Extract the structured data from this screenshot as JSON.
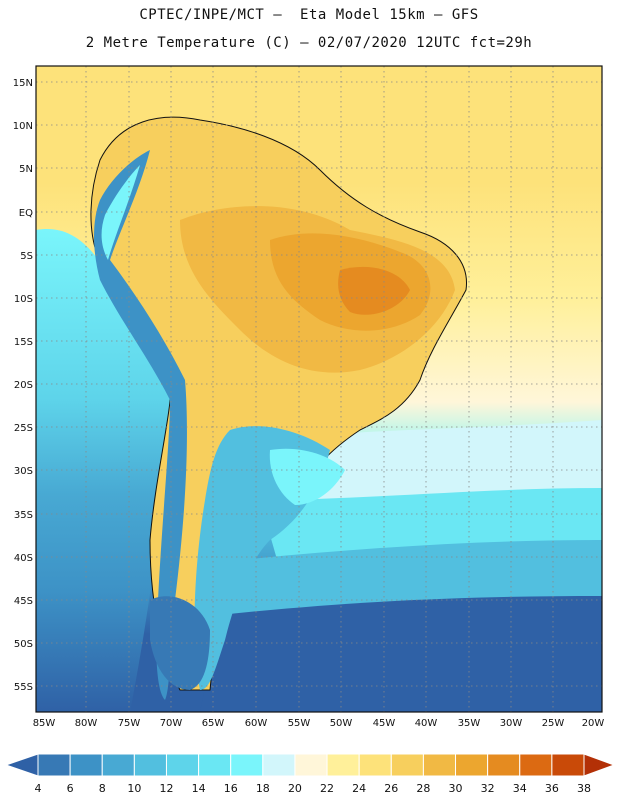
{
  "title": {
    "line1": "CPTEC/INPE/MCT –  Eta Model 15km – GFS",
    "line2": "2 Metre Temperature (C) – 02/07/2020 12UTC fct=29h"
  },
  "axes": {
    "lat_labels": [
      "15N",
      "10N",
      "5N",
      "EQ",
      "5S",
      "10S",
      "15S",
      "20S",
      "25S",
      "30S",
      "35S",
      "40S",
      "45S",
      "50S",
      "55S"
    ],
    "lon_labels": [
      "85W",
      "80W",
      "75W",
      "70W",
      "65W",
      "60W",
      "55W",
      "50W",
      "45W",
      "40W",
      "35W",
      "30W",
      "25W",
      "20W"
    ]
  },
  "colorbar": {
    "labels": [
      "4",
      "6",
      "8",
      "10",
      "12",
      "14",
      "16",
      "18",
      "20",
      "22",
      "24",
      "26",
      "28",
      "30",
      "32",
      "34",
      "36",
      "38"
    ],
    "colors": [
      "#2f61a6",
      "#3779b5",
      "#3d92c6",
      "#48a9d3",
      "#52bfdf",
      "#5ed4ea",
      "#6ae7f3",
      "#7af5fb",
      "#d2f6fb",
      "#fff6d9",
      "#fff09a",
      "#fde27a",
      "#f7cf5d",
      "#f1b944",
      "#eca62f",
      "#e58b20",
      "#dc6a12",
      "#c94a08",
      "#b33006"
    ]
  }
}
